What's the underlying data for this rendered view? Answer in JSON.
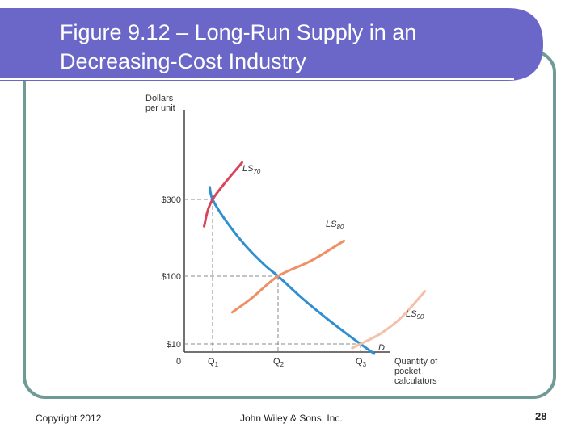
{
  "slide": {
    "title_line1": "Figure 9.12 – Long-Run Supply in an",
    "title_line2": "Decreasing-Cost Industry",
    "copyright": "Copyright 2012",
    "publisher": "John Wiley & Sons, Inc.",
    "page_number": "28",
    "colors": {
      "banner": "#6a67c9",
      "border": "#6f9a95"
    }
  },
  "chart_data": {
    "type": "line",
    "ylabel": [
      "Dollars",
      "per unit"
    ],
    "xlabel": [
      "Quantity of",
      "pocket",
      "calculators"
    ],
    "origin_label": "0",
    "y_ticks": [
      {
        "label": "$300",
        "value": 300
      },
      {
        "label": "$100",
        "value": 100
      },
      {
        "label": "$10",
        "value": 10
      }
    ],
    "x_ticks": [
      {
        "label": "Q",
        "sub": "1",
        "value": 1
      },
      {
        "label": "Q",
        "sub": "2",
        "value": 2
      },
      {
        "label": "Q",
        "sub": "3",
        "value": 3
      }
    ],
    "equilibria": [
      {
        "x": 1,
        "y": 300
      },
      {
        "x": 2,
        "y": 100
      },
      {
        "x": 3,
        "y": 10
      }
    ],
    "series": [
      {
        "name": "D",
        "label": "D",
        "sub": "",
        "color": "#2f8fd0",
        "x": [
          0.9,
          1.0,
          1.2,
          1.5,
          1.8,
          2.0,
          2.3,
          2.6,
          2.85,
          3.0,
          3.2
        ],
        "y": [
          335,
          300,
          245,
          180,
          128,
          100,
          70,
          43,
          22,
          10,
          -2
        ]
      },
      {
        "name": "LS70",
        "label": "LS",
        "sub": "70",
        "color": "#d9445a",
        "x": [
          0.7,
          1.0,
          1.45
        ],
        "y": [
          230,
          300,
          405
        ]
      },
      {
        "name": "LS80",
        "label": "LS",
        "sub": "80",
        "color": "#ef8f66",
        "x": [
          1.3,
          1.6,
          2.0,
          2.4,
          2.8
        ],
        "y": [
          52,
          71,
          100,
          140,
          192
        ]
      },
      {
        "name": "LS90",
        "label": "LS",
        "sub": "90",
        "color": "#f4c0a8",
        "x": [
          2.9,
          3.0,
          3.3,
          3.6,
          3.95
        ],
        "y": [
          5,
          10,
          24,
          45,
          80
        ]
      }
    ]
  }
}
